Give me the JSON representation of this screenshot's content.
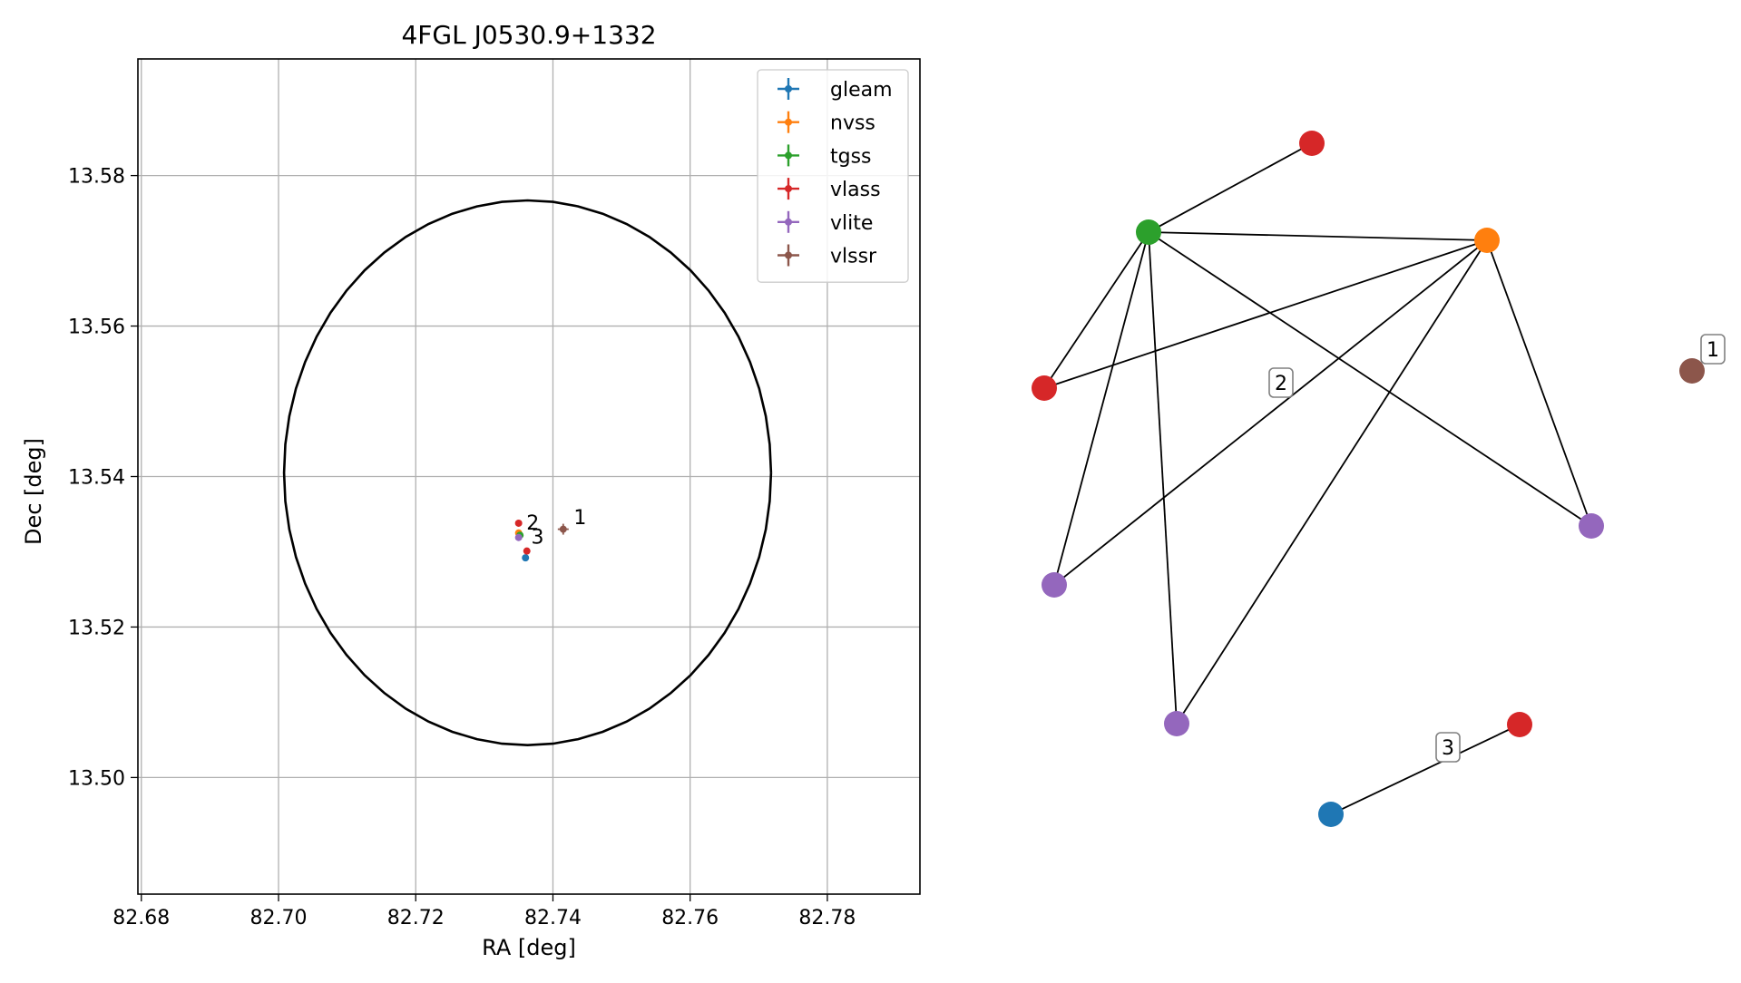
{
  "chart_data": [
    {
      "type": "scatter",
      "title": "4FGL J0530.9+1332",
      "xlabel": "RA [deg]",
      "ylabel": "Dec [deg]",
      "xlim": [
        82.6795,
        82.7935
      ],
      "ylim": [
        13.4845,
        13.5955
      ],
      "xticks": [
        82.68,
        82.7,
        82.72,
        82.74,
        82.76,
        82.78
      ],
      "xtick_labels": [
        "82.68",
        "82.70",
        "82.72",
        "82.74",
        "82.76",
        "82.78"
      ],
      "yticks": [
        13.5,
        13.52,
        13.54,
        13.56,
        13.58
      ],
      "ytick_labels": [
        "13.50",
        "13.52",
        "13.54",
        "13.56",
        "13.58"
      ],
      "grid": true,
      "legend_position": "top-right",
      "ellipse": {
        "center": [
          82.7363,
          13.5405
        ],
        "ra_semi_axis": 0.0355,
        "dec_semi_axis": 0.0362,
        "color": "#000000"
      },
      "series": [
        {
          "name": "gleam",
          "color": "#1f77b4",
          "points": [
            {
              "ra": 82.736,
              "dec": 13.5292
            }
          ]
        },
        {
          "name": "nvss",
          "color": "#ff7f0e",
          "points": [
            {
              "ra": 82.735,
              "dec": 13.5325
            }
          ]
        },
        {
          "name": "tgss",
          "color": "#2ca02c",
          "points": [
            {
              "ra": 82.7352,
              "dec": 13.5322
            }
          ]
        },
        {
          "name": "vlass",
          "color": "#d62728",
          "points": [
            {
              "ra": 82.735,
              "dec": 13.5338
            },
            {
              "ra": 82.7362,
              "dec": 13.5301
            }
          ]
        },
        {
          "name": "vlite",
          "color": "#9467bd",
          "points": [
            {
              "ra": 82.735,
              "dec": 13.5319
            }
          ]
        },
        {
          "name": "vlssr",
          "color": "#8c564b",
          "points": [
            {
              "ra": 82.7415,
              "dec": 13.533
            }
          ]
        }
      ],
      "annotations": [
        {
          "text": "1",
          "ra": 82.7425,
          "dec": 13.5344
        },
        {
          "text": "2",
          "ra": 82.7356,
          "dec": 13.5337
        },
        {
          "text": "3",
          "ra": 82.7363,
          "dec": 13.5318
        }
      ]
    },
    {
      "type": "network",
      "nodes": [
        {
          "id": "vlass-a",
          "color": "#d62728"
        },
        {
          "id": "tgss",
          "color": "#2ca02c"
        },
        {
          "id": "nvss",
          "color": "#ff7f0e"
        },
        {
          "id": "vlass-b",
          "color": "#d62728"
        },
        {
          "id": "vlssr",
          "color": "#8c564b"
        },
        {
          "id": "vlite-a",
          "color": "#9467bd"
        },
        {
          "id": "vlite-b",
          "color": "#9467bd"
        },
        {
          "id": "vlite-c",
          "color": "#9467bd"
        },
        {
          "id": "vlass-c",
          "color": "#d62728"
        },
        {
          "id": "gleam",
          "color": "#1f77b4"
        }
      ],
      "edges": [
        [
          "tgss",
          "vlass-a"
        ],
        [
          "tgss",
          "nvss"
        ],
        [
          "tgss",
          "vlass-b"
        ],
        [
          "tgss",
          "vlite-b"
        ],
        [
          "tgss",
          "vlite-c"
        ],
        [
          "tgss",
          "vlite-a"
        ],
        [
          "nvss",
          "vlass-b"
        ],
        [
          "nvss",
          "vlite-b"
        ],
        [
          "nvss",
          "vlite-c"
        ],
        [
          "nvss",
          "vlite-a"
        ],
        [
          "gleam",
          "vlass-c"
        ]
      ],
      "labels": [
        {
          "text": "1",
          "near": "vlssr"
        },
        {
          "text": "2",
          "group": "main cluster"
        },
        {
          "text": "3",
          "group": "gleam-vlass pair"
        }
      ]
    }
  ]
}
